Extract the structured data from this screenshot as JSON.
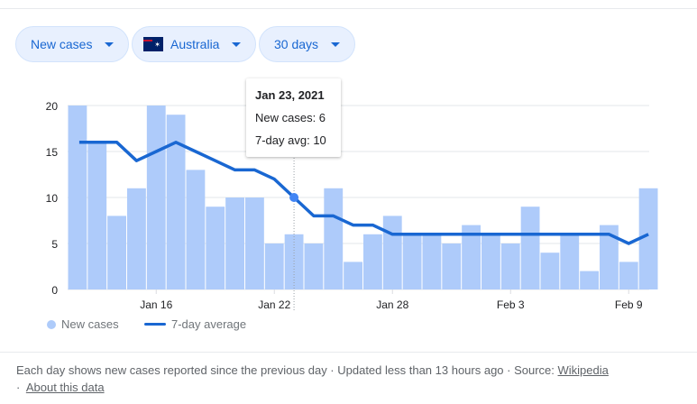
{
  "controls": {
    "metric": "New cases",
    "country": "Australia",
    "range": "30 days"
  },
  "tooltip": {
    "date": "Jan 23, 2021",
    "cases": "New cases: 6",
    "avg": "7-day avg: 10"
  },
  "legend": {
    "bars": "New cases",
    "line": "7-day average"
  },
  "footer": {
    "text": "Each day shows new cases reported since the previous day · Updated less than 13 hours ago  ·  Source: ",
    "source": "Wikipedia",
    "about": "About this data"
  },
  "colors": {
    "bar": "#aecbfa",
    "line": "#1967d2",
    "dot": "#4285f4"
  },
  "chart_data": {
    "type": "bar",
    "title": "",
    "x": [
      "Jan 12",
      "Jan 13",
      "Jan 14",
      "Jan 15",
      "Jan 16",
      "Jan 17",
      "Jan 18",
      "Jan 19",
      "Jan 20",
      "Jan 21",
      "Jan 22",
      "Jan 23",
      "Jan 24",
      "Jan 25",
      "Jan 26",
      "Jan 27",
      "Jan 28",
      "Jan 29",
      "Jan 30",
      "Jan 31",
      "Feb 1",
      "Feb 2",
      "Feb 3",
      "Feb 4",
      "Feb 5",
      "Feb 6",
      "Feb 7",
      "Feb 8",
      "Feb 9",
      "Feb 10"
    ],
    "series": [
      {
        "name": "New cases",
        "type": "bar",
        "values": [
          20,
          16,
          8,
          11,
          20,
          19,
          13,
          9,
          10,
          10,
          5,
          6,
          5,
          11,
          3,
          6,
          8,
          6,
          6,
          5,
          7,
          6,
          5,
          9,
          4,
          6,
          2,
          7,
          3,
          11
        ]
      },
      {
        "name": "7-day average",
        "type": "line",
        "values": [
          16,
          16,
          16,
          14,
          15,
          16,
          15,
          14,
          13,
          13,
          12,
          10,
          8,
          8,
          7,
          7,
          6,
          6,
          6,
          6,
          6,
          6,
          6,
          6,
          6,
          6,
          6,
          6,
          5,
          6
        ]
      }
    ],
    "xticks": [
      {
        "label": "Jan 16",
        "index": 4
      },
      {
        "label": "Jan 22",
        "index": 10
      },
      {
        "label": "Jan 28",
        "index": 16
      },
      {
        "label": "Feb 3",
        "index": 22
      },
      {
        "label": "Feb 9",
        "index": 28
      }
    ],
    "yticks": [
      0,
      5,
      10,
      15,
      20
    ],
    "ylim": [
      0,
      20
    ],
    "highlight_index": 11,
    "grid": true,
    "legend_position": "bottom-left"
  }
}
